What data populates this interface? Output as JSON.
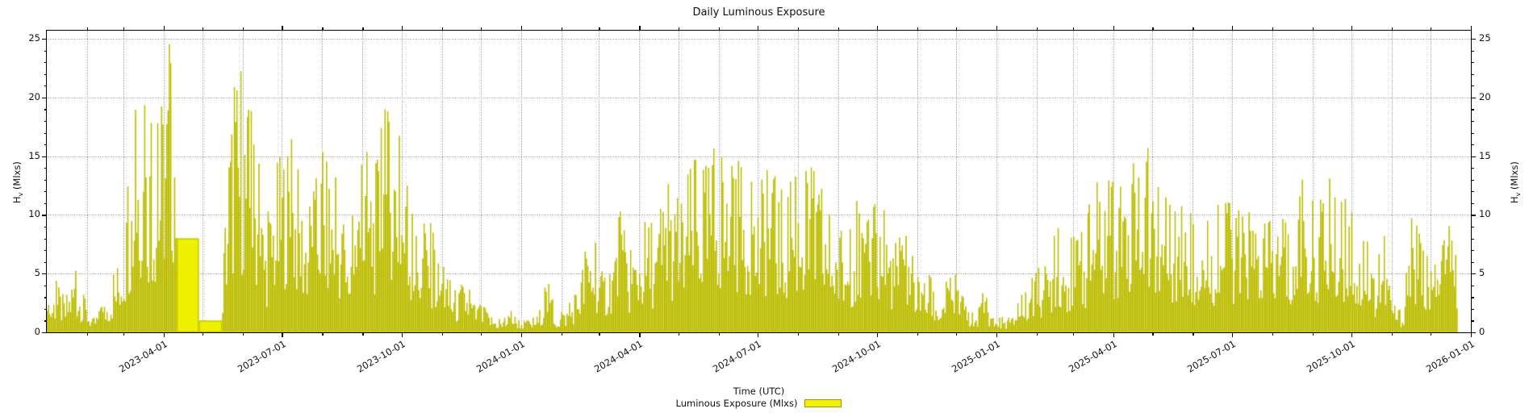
{
  "chart_data": {
    "type": "bar",
    "title": "Daily Luminous Exposure",
    "xlabel": "Time (UTC)",
    "ylabel": {
      "prefix": "H",
      "sub": "v",
      "suffix": " (Mlxs)"
    },
    "legend": {
      "label": "Luminous Exposure (Mlxs)"
    },
    "x_start": "2023-01-01",
    "x_end": "2026-01-01",
    "data_end": "2025-12-22",
    "ylim": [
      0,
      25.69
    ],
    "yticks": [
      0,
      5,
      10,
      15,
      20,
      25
    ],
    "y_minor_step": 1,
    "xticks": [
      "2023-04-01",
      "2023-07-01",
      "2023-10-01",
      "2024-01-01",
      "2024-04-01",
      "2024-07-01",
      "2024-10-01",
      "2025-01-01",
      "2025-04-01",
      "2025-07-01",
      "2025-10-01",
      "2026-01-01"
    ],
    "x_minor": "monthly",
    "grid": {
      "vertical": "monthly-dotted",
      "horizontal": "major-dotted"
    },
    "sampling": "weekly_peak_envelope_Mlxs",
    "weekly_start": "2023-01-01",
    "weekly_values": [
      2.0,
      4.4,
      2.8,
      5.6,
      3.2,
      1.2,
      2.2,
      4.0,
      7.2,
      13.3,
      21.2,
      18.6,
      16.8,
      23.8,
      25.5,
      8.0,
      8.0,
      1.0,
      1.0,
      1.0,
      18.2,
      22.9,
      20.6,
      16.5,
      9.0,
      13.5,
      16.8,
      16.4,
      12.0,
      10.5,
      15.8,
      14.2,
      12.8,
      6.5,
      12.5,
      15.6,
      13.9,
      18.8,
      20.1,
      15.4,
      10.3,
      8.8,
      9.9,
      6.6,
      4.8,
      3.6,
      4.4,
      2.6,
      2.2,
      1.4,
      1.0,
      1.8,
      1.2,
      1.0,
      1.6,
      4.7,
      1.4,
      2.0,
      3.2,
      6.6,
      8.6,
      5.2,
      6.9,
      10.3,
      6.8,
      8.2,
      9.9,
      8.5,
      13.2,
      11.2,
      12.1,
      15.2,
      13.5,
      15.9,
      15.1,
      14.0,
      14.6,
      13.6,
      11.8,
      13.9,
      13.3,
      11.9,
      13.2,
      13.4,
      14.2,
      12.6,
      10.0,
      9.0,
      7.8,
      11.2,
      9.2,
      10.9,
      10.4,
      8.2,
      8.0,
      8.5,
      3.6,
      5.0,
      2.6,
      4.6,
      5.0,
      2.2,
      1.6,
      3.6,
      1.2,
      1.4,
      1.2,
      3.0,
      4.3,
      5.5,
      6.0,
      9.1,
      7.6,
      8.4,
      8.6,
      12.6,
      13.0,
      12.9,
      12.4,
      15.3,
      13.2,
      15.7,
      12.5,
      11.5,
      10.3,
      12.6,
      9.2,
      9.5,
      9.5,
      11.4,
      11.0,
      10.4,
      10.2,
      10.3,
      9.1,
      10.0,
      9.6,
      8.0,
      13.0,
      11.2,
      11.3,
      13.1,
      10.5,
      12.7,
      7.0,
      8.1,
      5.5,
      8.2,
      2.8,
      1.6,
      9.7,
      9.0,
      5.5,
      6.0,
      9.3,
      7.6
    ],
    "flat_segments": [
      {
        "start": "2023-04-11",
        "end": "2023-04-28",
        "value": 8.0
      },
      {
        "start": "2023-04-28",
        "end": "2023-05-16",
        "value": 1.0
      }
    ],
    "colors": {
      "bar_fill": "#c9c900",
      "bar_edge": "#a5a500",
      "flat_fill": "#efef00",
      "flat_edge": "#bdbd00",
      "grid": "#b0b0b0",
      "spine": "#000000",
      "legend_swatch_fill": "#f0f000",
      "legend_swatch_edge": "#9a9a00",
      "background": "#ffffff"
    }
  }
}
